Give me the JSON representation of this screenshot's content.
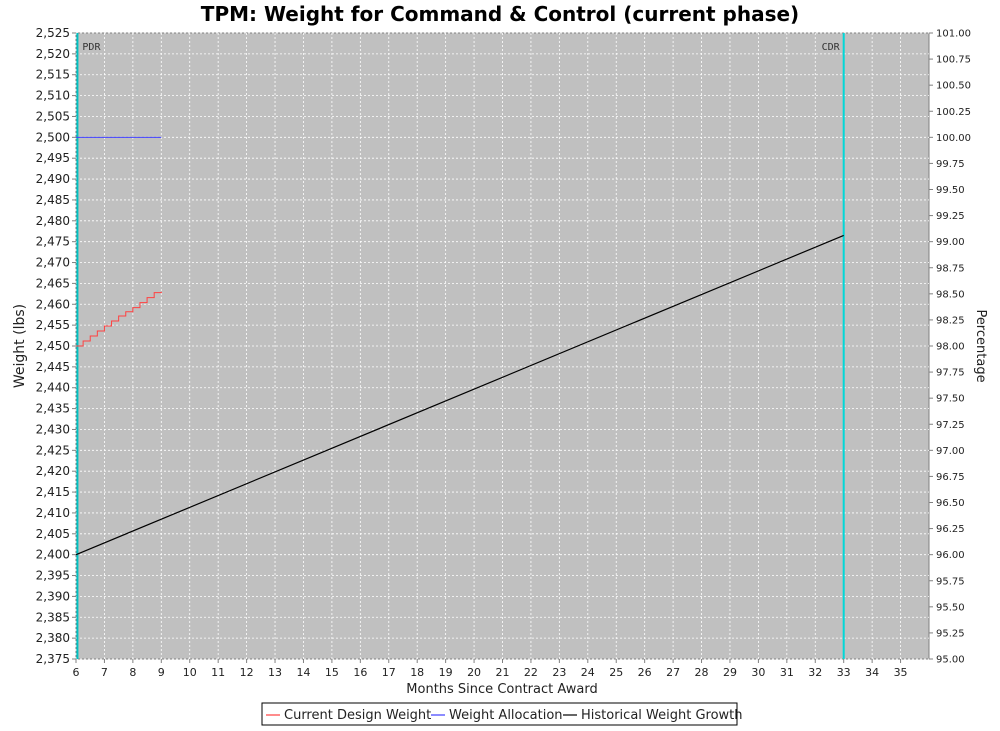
{
  "chart_data": {
    "type": "line",
    "title": "TPM: Weight for Command & Control (current phase)",
    "xlabel": "Months Since Contract Award",
    "ylabel": "Weight (lbs)",
    "y2label": "Percentage",
    "xlim": [
      6,
      36
    ],
    "ylim": [
      2375,
      2525
    ],
    "y2lim": [
      95.0,
      101.0
    ],
    "x_ticks": [
      6,
      7,
      8,
      9,
      10,
      11,
      12,
      13,
      14,
      15,
      16,
      17,
      18,
      19,
      20,
      21,
      22,
      23,
      24,
      25,
      26,
      27,
      28,
      29,
      30,
      31,
      32,
      33,
      34,
      35
    ],
    "y_ticks": [
      2375,
      2380,
      2385,
      2390,
      2395,
      2400,
      2405,
      2410,
      2415,
      2420,
      2425,
      2430,
      2435,
      2440,
      2445,
      2450,
      2455,
      2460,
      2465,
      2470,
      2475,
      2480,
      2485,
      2490,
      2495,
      2500,
      2505,
      2510,
      2515,
      2520,
      2525
    ],
    "y_tick_labels": [
      "2,375",
      "2,380",
      "2,385",
      "2,390",
      "2,395",
      "2,400",
      "2,405",
      "2,410",
      "2,415",
      "2,420",
      "2,425",
      "2,430",
      "2,435",
      "2,440",
      "2,445",
      "2,450",
      "2,455",
      "2,460",
      "2,465",
      "2,470",
      "2,475",
      "2,480",
      "2,485",
      "2,490",
      "2,495",
      "2,500",
      "2,505",
      "2,510",
      "2,515",
      "2,520",
      "2,525"
    ],
    "y2_ticks": [
      95.0,
      95.25,
      95.5,
      95.75,
      96.0,
      96.25,
      96.5,
      96.75,
      97.0,
      97.25,
      97.5,
      97.75,
      98.0,
      98.25,
      98.5,
      98.75,
      99.0,
      99.25,
      99.5,
      99.75,
      100.0,
      100.25,
      100.5,
      100.75,
      101.0
    ],
    "y2_tick_labels": [
      "95.00",
      "95.25",
      "95.50",
      "95.75",
      "96.00",
      "96.25",
      "96.50",
      "96.75",
      "97.00",
      "97.25",
      "97.50",
      "97.75",
      "98.00",
      "98.25",
      "98.50",
      "98.75",
      "99.00",
      "99.25",
      "99.50",
      "99.75",
      "100.00",
      "100.25",
      "100.50",
      "100.75",
      "101.00"
    ],
    "grid": true,
    "legend_position": "bottom",
    "plot_background": "#c0c0c0",
    "markers": [
      {
        "label": "PDR",
        "x": 6.05,
        "color": "#00c0c0"
      },
      {
        "label": "CDR",
        "x": 33.0,
        "color": "#00d8d8"
      }
    ],
    "series": [
      {
        "name": "Current Design Weight",
        "color": "#ff4040",
        "step": true,
        "x": [
          6.0,
          6.25,
          6.5,
          6.75,
          7.0,
          7.25,
          7.5,
          7.75,
          8.0,
          8.25,
          8.5,
          8.75,
          9.0
        ],
        "y": [
          2450.0,
          2451.2,
          2452.4,
          2453.6,
          2454.8,
          2456.0,
          2457.2,
          2458.2,
          2459.2,
          2460.4,
          2461.6,
          2462.8,
          2463.0
        ]
      },
      {
        "name": "Weight Allocation",
        "color": "#4040ff",
        "x": [
          6,
          9
        ],
        "y": [
          2500,
          2500
        ]
      },
      {
        "name": "Historical Weight Growth",
        "color": "#000000",
        "x": [
          6,
          33
        ],
        "y": [
          2400,
          2476.5
        ]
      }
    ]
  }
}
